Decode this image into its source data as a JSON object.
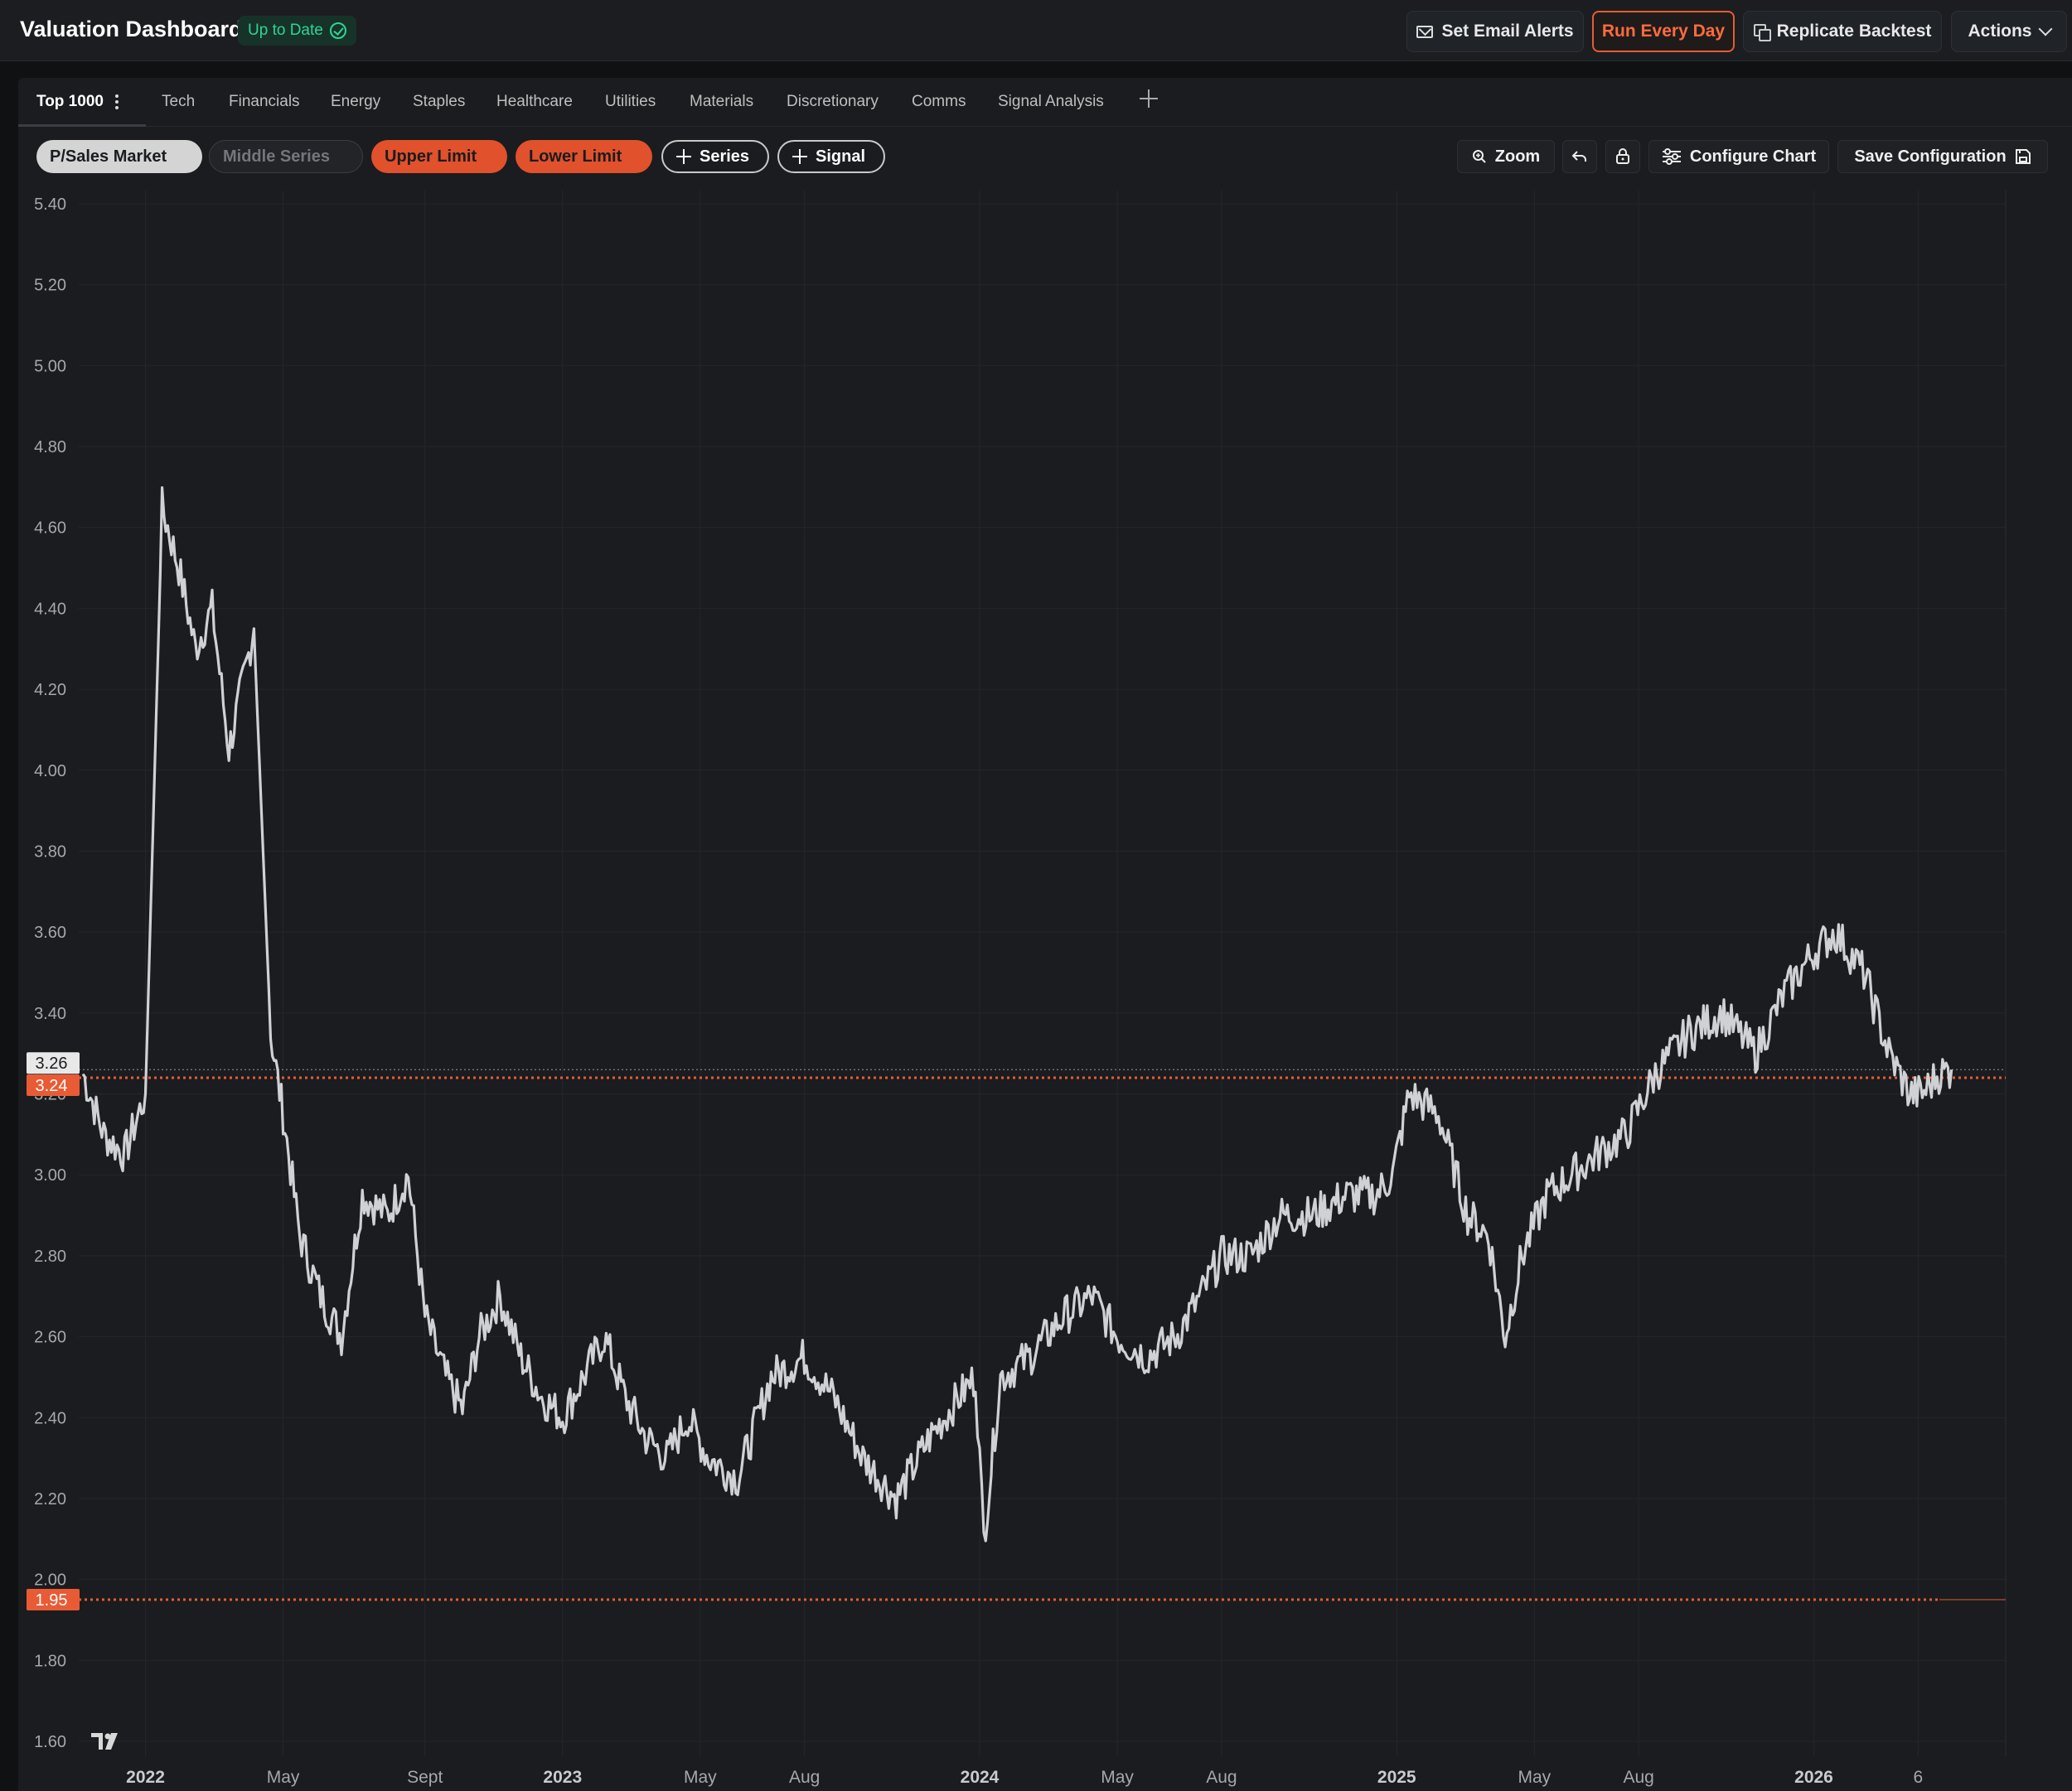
{
  "app": {
    "title": "Valuation Dashboard",
    "status": "Up to Date"
  },
  "header_actions": {
    "email_alerts": "Set Email Alerts",
    "run_every_day": "Run Every Day",
    "replicate_backtest": "Replicate Backtest",
    "actions": "Actions"
  },
  "tabs": [
    "Top 1000",
    "Tech",
    "Financials",
    "Energy",
    "Staples",
    "Healthcare",
    "Utilities",
    "Materials",
    "Discretionary",
    "Comms",
    "Signal Analysis"
  ],
  "series_pills": {
    "ps_market": "P/Sales Market",
    "middle_series": "Middle Series",
    "upper_limit": "Upper Limit",
    "lower_limit": "Lower Limit",
    "add_series": "Series",
    "add_signal": "Signal"
  },
  "chart_toolbar": {
    "zoom": "Zoom",
    "configure": "Configure Chart",
    "save": "Save Configuration"
  },
  "colors": {
    "accent": "#e85b34",
    "up_to_date": "#2fd494",
    "line": "#cfd1d4"
  },
  "chart_data": {
    "type": "line",
    "y_ticks": [
      "5.40",
      "5.20",
      "5.00",
      "4.80",
      "4.60",
      "4.40",
      "4.20",
      "4.00",
      "3.80",
      "3.60",
      "3.40",
      "3.20",
      "3.00",
      "2.80",
      "2.60",
      "2.40",
      "2.20",
      "2.00",
      "1.80",
      "1.60"
    ],
    "ylim": [
      1.6,
      5.4
    ],
    "x_ticks": [
      {
        "label": "2022",
        "t": 2022.0,
        "bold": true
      },
      {
        "label": "May",
        "t": 2022.33,
        "bold": false
      },
      {
        "label": "Sept",
        "t": 2022.67,
        "bold": false
      },
      {
        "label": "2023",
        "t": 2023.0,
        "bold": true
      },
      {
        "label": "May",
        "t": 2023.33,
        "bold": false
      },
      {
        "label": "Aug",
        "t": 2023.58,
        "bold": false
      },
      {
        "label": "2024",
        "t": 2024.0,
        "bold": true
      },
      {
        "label": "May",
        "t": 2024.33,
        "bold": false
      },
      {
        "label": "Aug",
        "t": 2024.58,
        "bold": false
      },
      {
        "label": "2025",
        "t": 2025.0,
        "bold": true
      },
      {
        "label": "May",
        "t": 2025.33,
        "bold": false
      },
      {
        "label": "Aug",
        "t": 2025.58,
        "bold": false
      },
      {
        "label": "2026",
        "t": 2026.0,
        "bold": true
      },
      {
        "label": "6",
        "t": 2026.25,
        "bold": false
      }
    ],
    "xlim": [
      2021.84,
      2026.46
    ],
    "current_value": "3.26",
    "upper_limit_value": "3.24",
    "lower_limit_value": "1.95",
    "upper_limit": 3.24,
    "lower_limit": 1.95,
    "series": [
      {
        "t": [
          2021.85,
          2021.9,
          2021.95,
          2022.0,
          2022.04,
          2022.08,
          2022.12,
          2022.16,
          2022.2,
          2022.23,
          2022.26,
          2022.3,
          2022.33,
          2022.37,
          2022.42,
          2022.47,
          2022.52,
          2022.58,
          2022.63,
          2022.67,
          2022.72,
          2022.76,
          2022.8,
          2022.85,
          2022.9,
          2022.95,
          2023.0,
          2023.05,
          2023.1,
          2023.15,
          2023.2,
          2023.25,
          2023.3,
          2023.35,
          2023.42,
          2023.5,
          2023.58,
          2023.65,
          2023.72,
          2023.8,
          2023.88,
          2023.95,
          2023.99,
          2024.01,
          2024.05,
          2024.12,
          2024.2,
          2024.27,
          2024.33,
          2024.4,
          2024.47,
          2024.53,
          2024.58,
          2024.65,
          2024.72,
          2024.8,
          2024.88,
          2024.95,
          2024.99,
          2025.03,
          2025.1,
          2025.17,
          2025.22,
          2025.26,
          2025.3,
          2025.36,
          2025.42,
          2025.48,
          2025.55,
          2025.62,
          2025.7,
          2025.78,
          2025.86,
          2025.93,
          2026.0,
          2026.05,
          2026.12,
          2026.18,
          2026.23,
          2026.26,
          2026.3,
          2026.33
        ],
        "v": [
          3.25,
          3.1,
          3.05,
          3.2,
          4.65,
          4.5,
          4.3,
          4.4,
          4.05,
          4.2,
          4.35,
          3.35,
          3.15,
          2.85,
          2.7,
          2.6,
          2.95,
          2.9,
          3.0,
          2.65,
          2.5,
          2.42,
          2.6,
          2.7,
          2.55,
          2.45,
          2.4,
          2.5,
          2.6,
          2.45,
          2.35,
          2.3,
          2.4,
          2.3,
          2.25,
          2.5,
          2.55,
          2.45,
          2.3,
          2.2,
          2.35,
          2.45,
          2.5,
          2.1,
          2.5,
          2.55,
          2.65,
          2.7,
          2.6,
          2.55,
          2.6,
          2.7,
          2.8,
          2.8,
          2.9,
          2.9,
          2.95,
          2.95,
          3.0,
          3.2,
          3.15,
          2.9,
          2.85,
          2.6,
          2.8,
          2.95,
          3.0,
          3.05,
          3.1,
          3.25,
          3.35,
          3.4,
          3.3,
          3.45,
          3.55,
          3.6,
          3.5,
          3.3,
          3.2,
          3.2,
          3.25,
          3.26
        ]
      }
    ]
  }
}
